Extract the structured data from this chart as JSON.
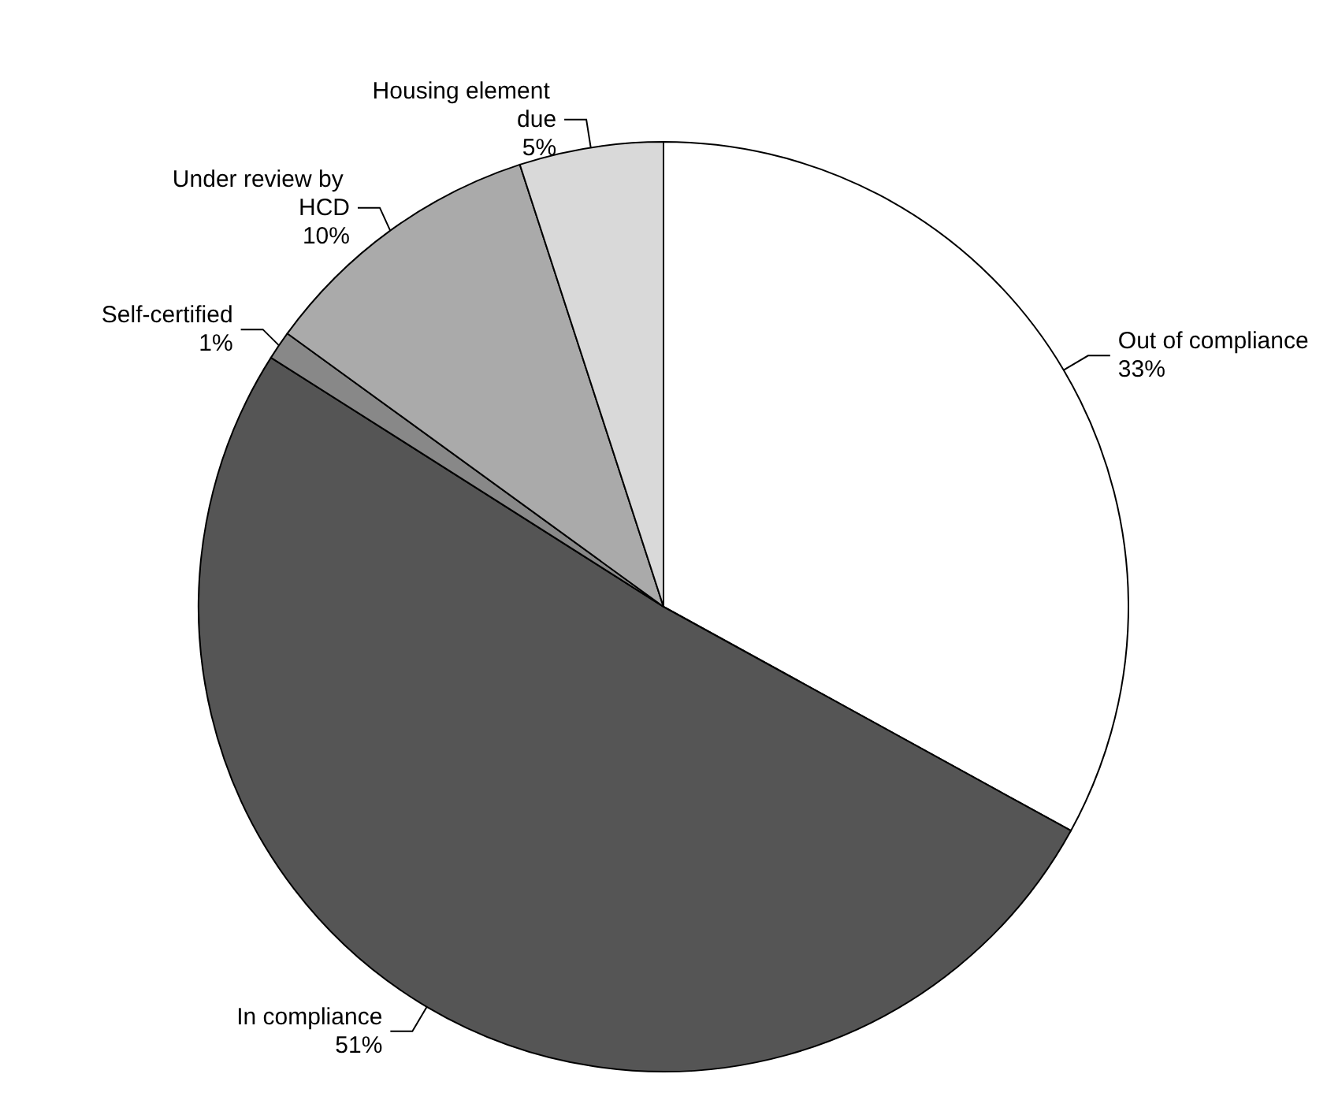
{
  "chart_data": {
    "type": "pie",
    "categories": [
      "Out of compliance",
      "In compliance",
      "Self-certified",
      "Under review by HCD",
      "Housing element due"
    ],
    "values": [
      33,
      51,
      1,
      10,
      5
    ],
    "colors": [
      "#ffffff",
      "#555555",
      "#888888",
      "#aaaaaa",
      "#d9d9d9"
    ],
    "value_labels": [
      "33%",
      "51%",
      "1%",
      "10%",
      "5%"
    ],
    "legend": false
  }
}
